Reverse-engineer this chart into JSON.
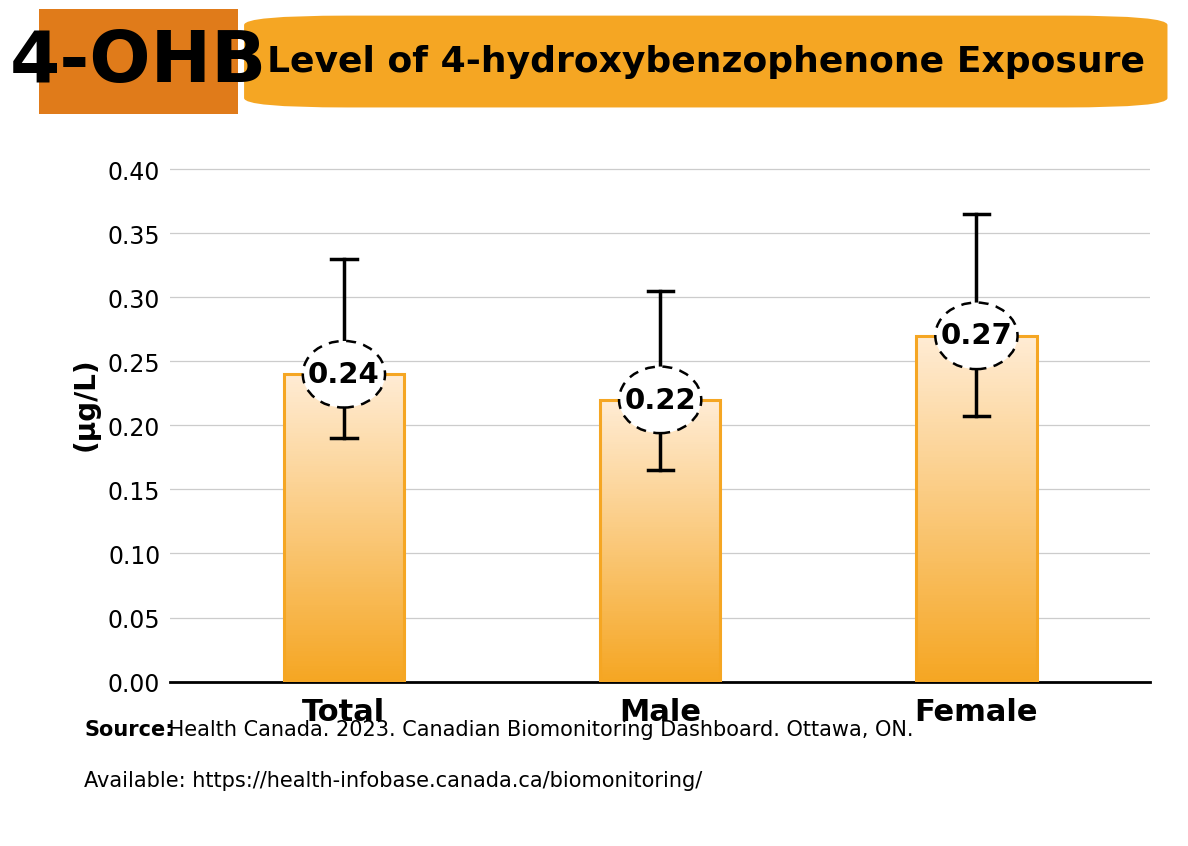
{
  "title": "Level of 4-hydroxybenzophenone Exposure",
  "label_abbr": "4-OHB",
  "categories": [
    "Total",
    "Male",
    "Female"
  ],
  "values": [
    0.24,
    0.22,
    0.27
  ],
  "error_upper": [
    0.33,
    0.305,
    0.365
  ],
  "error_lower": [
    0.19,
    0.165,
    0.207
  ],
  "bar_color_orange": "#F5A623",
  "bar_color_light": "#FDEBD0",
  "ylabel": "(μg/L)",
  "ylim": [
    0,
    0.435
  ],
  "yticks": [
    0.0,
    0.05,
    0.1,
    0.15,
    0.2,
    0.25,
    0.3,
    0.35,
    0.4
  ],
  "source_bold": "Source:",
  "source_line1": " Health Canada. 2023. Canadian Biomonitoring Dashboard. Ottawa, ON.",
  "source_line2": "Available: https://health-infobase.canada.ca/biomonitoring/",
  "abbr_box_color": "#E07B1A",
  "header_pill_color": "#F5A623",
  "title_fontsize": 26,
  "bar_width": 0.38,
  "annotation_fontsize": 21,
  "tick_fontsize": 17,
  "xlabel_fontsize": 22,
  "ylabel_fontsize": 20,
  "source_fontsize": 15
}
